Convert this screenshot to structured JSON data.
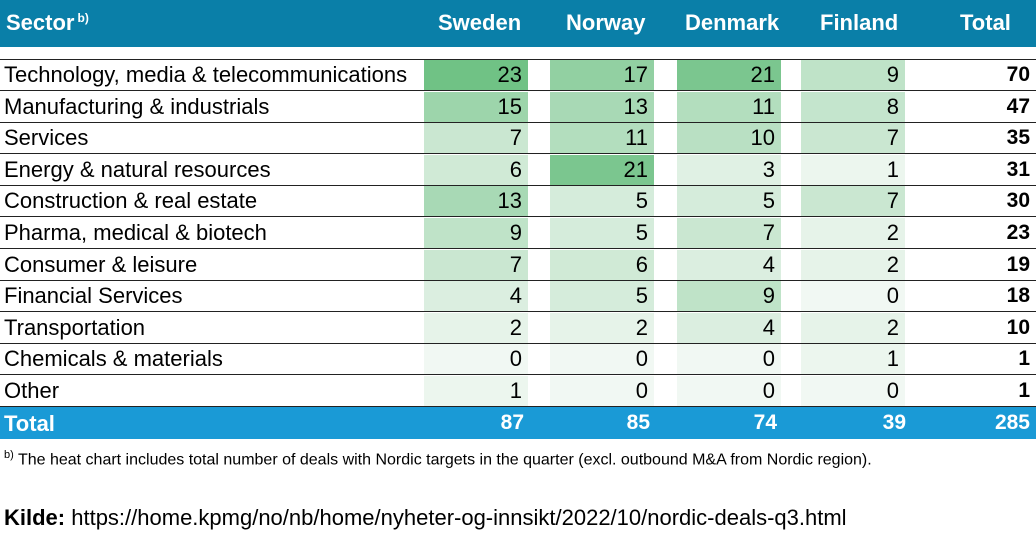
{
  "header": {
    "sector_label": "Sector",
    "sector_sup": "b)",
    "columns": [
      "Sweden",
      "Norway",
      "Denmark",
      "Finland",
      "Total"
    ]
  },
  "chart_data": {
    "type": "heatmap",
    "x": [
      "Sweden",
      "Norway",
      "Denmark",
      "Finland"
    ],
    "y": [
      "Technology, media & telecommunications",
      "Manufacturing & industrials",
      "Services",
      "Energy & natural resources",
      "Construction & real estate",
      "Pharma, medical & biotech",
      "Consumer & leisure",
      "Financial Services",
      "Transportation",
      "Chemicals & materials",
      "Other"
    ],
    "values": [
      [
        23,
        17,
        21,
        9
      ],
      [
        15,
        13,
        11,
        8
      ],
      [
        7,
        11,
        10,
        7
      ],
      [
        6,
        21,
        3,
        1
      ],
      [
        13,
        5,
        5,
        7
      ],
      [
        9,
        5,
        7,
        2
      ],
      [
        7,
        6,
        4,
        2
      ],
      [
        4,
        5,
        9,
        0
      ],
      [
        2,
        2,
        4,
        2
      ],
      [
        0,
        0,
        0,
        1
      ],
      [
        1,
        0,
        0,
        0
      ]
    ],
    "row_totals": [
      70,
      47,
      35,
      31,
      30,
      23,
      19,
      18,
      10,
      1,
      1
    ],
    "column_totals": [
      87,
      85,
      74,
      39
    ],
    "grand_total": 285,
    "total_label": "Total"
  },
  "colors": {
    "header_bg": "#0a7fa8",
    "total_bg": "#1a9ad6",
    "heat_low": "#f4f9f5",
    "heat_high": "#6cc082"
  },
  "footnote": {
    "sup": "b)",
    "text": " The heat chart includes total number of deals with Nordic targets in the quarter (excl. outbound M&A from Nordic region)."
  },
  "source": {
    "label": "Kilde:",
    "url": " https://home.kpmg/no/nb/home/nyheter-og-innsikt/2022/10/nordic-deals-q3.html"
  }
}
